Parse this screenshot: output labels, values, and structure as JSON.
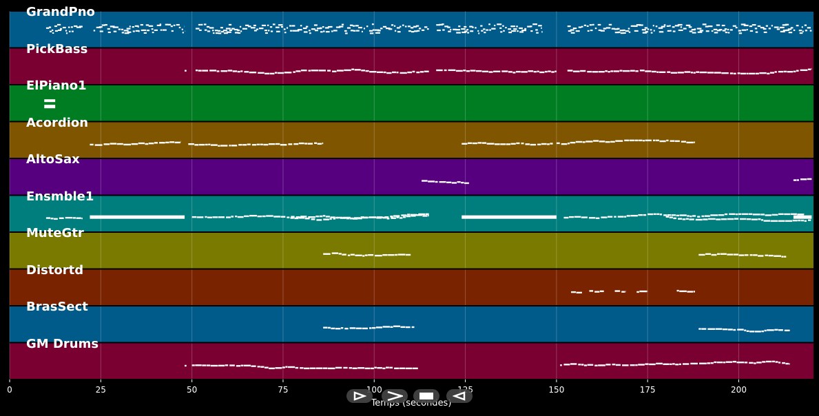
{
  "chart_data": {
    "type": "piano-roll",
    "xlabel": "Temps (secondes)",
    "xlim": [
      0,
      220.5
    ],
    "xticks": [
      0,
      25,
      50,
      75,
      100,
      125,
      150,
      175,
      200
    ],
    "tracks": [
      {
        "name": "GrandPno",
        "color": "#005a8a",
        "segments": [
          [
            10,
            20,
            "dense"
          ],
          [
            23,
            48,
            "dense"
          ],
          [
            51,
            115,
            "dense"
          ],
          [
            117,
            146,
            "dense"
          ],
          [
            153,
            220,
            "dense"
          ]
        ]
      },
      {
        "name": "PickBass",
        "color": "#7a0031",
        "segments": [
          [
            48,
            48.5,
            "line"
          ],
          [
            51,
            115,
            "line"
          ],
          [
            117,
            150,
            "line"
          ],
          [
            153,
            220,
            "line"
          ]
        ]
      },
      {
        "name": "ElPiano1",
        "color": "#007d22",
        "segments": [
          [
            9.5,
            12.5,
            "block"
          ]
        ]
      },
      {
        "name": "Acordion",
        "color": "#7f5500",
        "segments": [
          [
            22,
            47,
            "line"
          ],
          [
            49,
            86,
            "line"
          ],
          [
            124,
            149,
            "line"
          ],
          [
            150,
            188,
            "line"
          ]
        ]
      },
      {
        "name": "AltoSax",
        "color": "#560080",
        "segments": [
          [
            113,
            126,
            "line"
          ],
          [
            215,
            220,
            "line"
          ]
        ]
      },
      {
        "name": "Ensmble1",
        "color": "#007d7d",
        "segments": [
          [
            10,
            20,
            "line"
          ],
          [
            22,
            48,
            "block"
          ],
          [
            50,
            115,
            "line"
          ],
          [
            77,
            115,
            "line"
          ],
          [
            124,
            150,
            "block"
          ],
          [
            152,
            218,
            "line"
          ],
          [
            180,
            220,
            "line"
          ],
          [
            215,
            220,
            "block"
          ]
        ]
      },
      {
        "name": "MuteGtr",
        "color": "#7a7a00",
        "segments": [
          [
            86,
            110,
            "line"
          ],
          [
            189,
            213,
            "line"
          ]
        ]
      },
      {
        "name": "Distortd",
        "color": "#7a2300",
        "segments": [
          [
            154,
            157,
            "line"
          ],
          [
            159,
            163,
            "line"
          ],
          [
            166,
            169,
            "line"
          ],
          [
            172,
            175,
            "line"
          ],
          [
            183,
            188,
            "line"
          ]
        ]
      },
      {
        "name": "BrasSect",
        "color": "#005a8a",
        "segments": [
          [
            86,
            111,
            "line"
          ],
          [
            189,
            214,
            "line"
          ]
        ]
      },
      {
        "name": "GM Drums",
        "color": "#7a0031",
        "segments": [
          [
            48,
            48.5,
            "line"
          ],
          [
            50,
            112,
            "line"
          ],
          [
            151,
            151.5,
            "line"
          ],
          [
            152,
            214,
            "line"
          ]
        ]
      }
    ]
  },
  "controls": [
    {
      "id": "rewind",
      "icon": "rewind-icon"
    },
    {
      "id": "play",
      "icon": "play-icon"
    },
    {
      "id": "stop",
      "icon": "stop-icon"
    },
    {
      "id": "forward",
      "icon": "forward-icon"
    }
  ]
}
